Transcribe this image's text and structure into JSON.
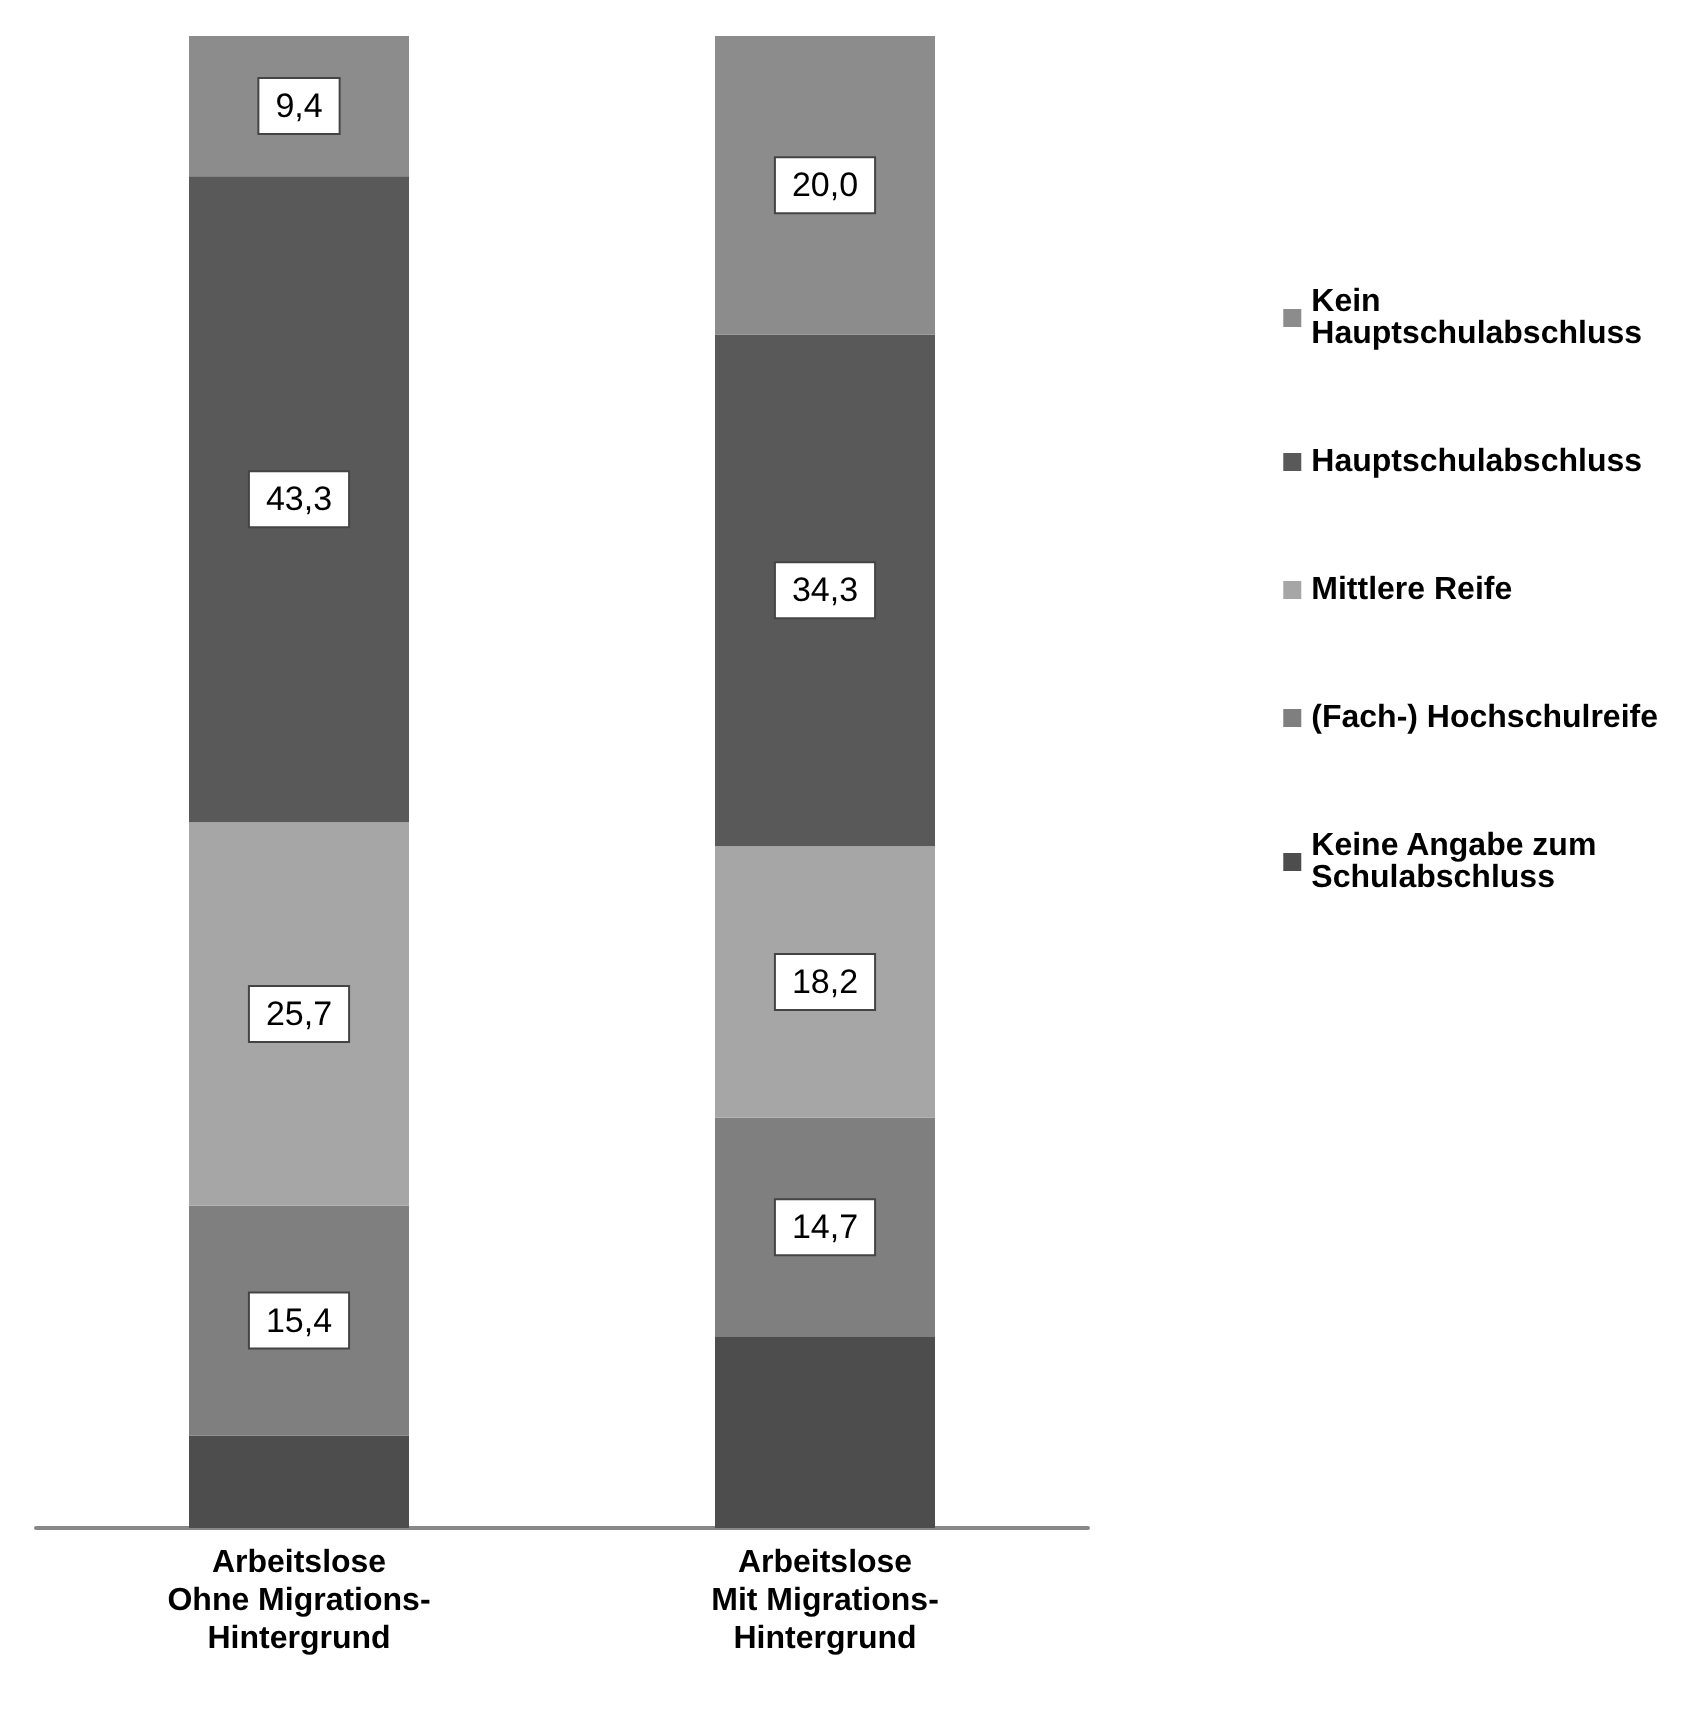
{
  "chart_data": {
    "type": "bar",
    "stacked": true,
    "tick_labels": "x",
    "categories": [
      "Arbeitslose\nOhne Migrations-\nHintergrund",
      "Arbeitslose\nMit Migrations-\nHintergrund"
    ],
    "series": [
      {
        "name": "Keine Angabe zum Schulabschluss",
        "color": "#4d4d4d",
        "values": [
          6.2,
          12.8
        ],
        "value_labels": [
          null,
          null
        ]
      },
      {
        "name": "(Fach-) Hochschulreife",
        "color": "#7f7f7f",
        "values": [
          15.4,
          14.7
        ],
        "value_labels": [
          "15,4",
          "14,7"
        ]
      },
      {
        "name": "Mittlere Reife",
        "color": "#a6a6a6",
        "values": [
          25.7,
          18.2
        ],
        "value_labels": [
          "25,7",
          "18,2"
        ]
      },
      {
        "name": "Hauptschulabschluss",
        "color": "#595959",
        "values": [
          43.3,
          34.3
        ],
        "value_labels": [
          "43,3",
          "34,3"
        ]
      },
      {
        "name": "Kein Hauptschulabschluss",
        "color": "#8c8c8c",
        "values": [
          9.4,
          20.0
        ],
        "value_labels": [
          "9,4",
          "20,0"
        ]
      }
    ],
    "legend": "right"
  }
}
